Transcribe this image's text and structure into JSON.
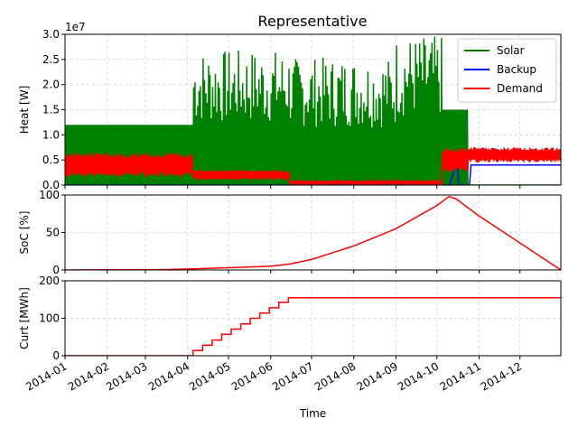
{
  "chart_data": [
    {
      "type": "line",
      "title": "Representative",
      "ylabel": "Heat [W]",
      "offset_text": "1e7",
      "xlim": [
        "2014-01-01",
        "2014-12-31"
      ],
      "ylim": [
        0,
        3.0
      ],
      "y_ticks": [
        0.0,
        0.5,
        1.0,
        1.5,
        2.0,
        2.5,
        3.0
      ],
      "y_tick_labels": [
        "0.0",
        "0.5",
        "1.0",
        "1.5",
        "2.0",
        "2.5",
        "3.0"
      ],
      "grid": true,
      "legend_position": "top-right",
      "series": [
        {
          "name": "Solar",
          "color": "#008000",
          "style": "daily-spikes",
          "description_points": [
            {
              "from": "2014-01-01",
              "to": "2014-04-05",
              "daily_peak": 1.2
            },
            {
              "from": "2014-04-05",
              "to": "2014-05-01",
              "daily_peak": 2.7
            },
            {
              "from": "2014-05-01",
              "to": "2014-06-15",
              "daily_peak": 2.7
            },
            {
              "from": "2014-06-15",
              "to": "2014-09-01",
              "daily_peak": 2.55
            },
            {
              "from": "2014-09-01",
              "to": "2014-10-05",
              "daily_peak": 2.97
            },
            {
              "from": "2014-10-05",
              "to": "2014-10-24",
              "daily_peak": 1.5
            },
            {
              "from": "2014-10-24",
              "to": "2014-12-31",
              "daily_peak": 0.0
            }
          ]
        },
        {
          "name": "Backup",
          "color": "#0000ff",
          "points": [
            [
              "2014-01-01",
              0
            ],
            [
              "2014-10-10",
              0
            ],
            [
              "2014-10-16",
              0.45
            ],
            [
              "2014-10-17",
              0
            ],
            [
              "2014-10-25",
              0
            ],
            [
              "2014-10-26",
              0.4
            ],
            [
              "2014-12-31",
              0.4
            ]
          ]
        },
        {
          "name": "Demand",
          "color": "#ff0000",
          "style": "noisy-daily",
          "segments": [
            {
              "from": "2014-01-01",
              "to": "2014-04-05",
              "base": 0.4,
              "amp": 0.25
            },
            {
              "from": "2014-04-05",
              "to": "2014-06-15",
              "base": 0.2,
              "amp": 0.1
            },
            {
              "from": "2014-06-15",
              "to": "2014-10-05",
              "base": 0.05,
              "amp": 0.04
            },
            {
              "from": "2014-10-05",
              "to": "2014-10-24",
              "base": 0.5,
              "amp": 0.25
            },
            {
              "from": "2014-10-24",
              "to": "2014-12-31",
              "base": 0.6,
              "amp": 0.15
            }
          ]
        }
      ]
    },
    {
      "type": "line",
      "ylabel": "SoC [%]",
      "xlim": [
        "2014-01-01",
        "2014-12-31"
      ],
      "ylim": [
        0,
        100
      ],
      "y_ticks": [
        0,
        50,
        100
      ],
      "y_tick_labels": [
        "0",
        "50",
        "100"
      ],
      "grid": true,
      "series": [
        {
          "name": "",
          "color": "#ff0000",
          "points": [
            [
              "2014-01-01",
              0
            ],
            [
              "2014-03-15",
              0.5
            ],
            [
              "2014-04-05",
              1.5
            ],
            [
              "2014-05-01",
              3
            ],
            [
              "2014-06-01",
              5
            ],
            [
              "2014-06-15",
              8
            ],
            [
              "2014-07-01",
              14
            ],
            [
              "2014-08-01",
              32
            ],
            [
              "2014-09-01",
              55
            ],
            [
              "2014-10-01",
              86
            ],
            [
              "2014-10-10",
              98
            ],
            [
              "2014-10-15",
              95
            ],
            [
              "2014-11-01",
              72
            ],
            [
              "2014-12-31",
              0
            ]
          ]
        }
      ]
    },
    {
      "type": "line",
      "ylabel": "Curt [MWh]",
      "xlabel": "Time",
      "xlim": [
        "2014-01-01",
        "2014-12-31"
      ],
      "ylim": [
        0,
        200
      ],
      "y_ticks": [
        0,
        100,
        200
      ],
      "y_tick_labels": [
        "0",
        "100",
        "200"
      ],
      "grid": true,
      "x_ticks": [
        "2014-01-01",
        "2014-02-01",
        "2014-03-01",
        "2014-04-01",
        "2014-05-01",
        "2014-06-01",
        "2014-07-01",
        "2014-08-01",
        "2014-09-01",
        "2014-10-01",
        "2014-11-01",
        "2014-12-01"
      ],
      "x_tick_labels": [
        "2014-01",
        "2014-02",
        "2014-03",
        "2014-04",
        "2014-05",
        "2014-06",
        "2014-07",
        "2014-08",
        "2014-09",
        "2014-10",
        "2014-11",
        "2014-12"
      ],
      "series": [
        {
          "name": "",
          "color": "#ff0000",
          "style": "step",
          "points": [
            [
              "2014-01-01",
              0
            ],
            [
              "2014-04-05",
              0
            ],
            [
              "2014-04-05",
              14
            ],
            [
              "2014-04-12",
              14
            ],
            [
              "2014-04-12",
              28
            ],
            [
              "2014-04-19",
              28
            ],
            [
              "2014-04-19",
              42
            ],
            [
              "2014-04-26",
              42
            ],
            [
              "2014-04-26",
              57
            ],
            [
              "2014-05-03",
              57
            ],
            [
              "2014-05-03",
              71
            ],
            [
              "2014-05-10",
              71
            ],
            [
              "2014-05-10",
              85
            ],
            [
              "2014-05-17",
              85
            ],
            [
              "2014-05-17",
              100
            ],
            [
              "2014-05-24",
              100
            ],
            [
              "2014-05-24",
              114
            ],
            [
              "2014-05-31",
              114
            ],
            [
              "2014-05-31",
              128
            ],
            [
              "2014-06-07",
              128
            ],
            [
              "2014-06-07",
              143
            ],
            [
              "2014-06-14",
              143
            ],
            [
              "2014-06-14",
              155
            ],
            [
              "2014-12-31",
              155
            ]
          ]
        }
      ]
    }
  ]
}
